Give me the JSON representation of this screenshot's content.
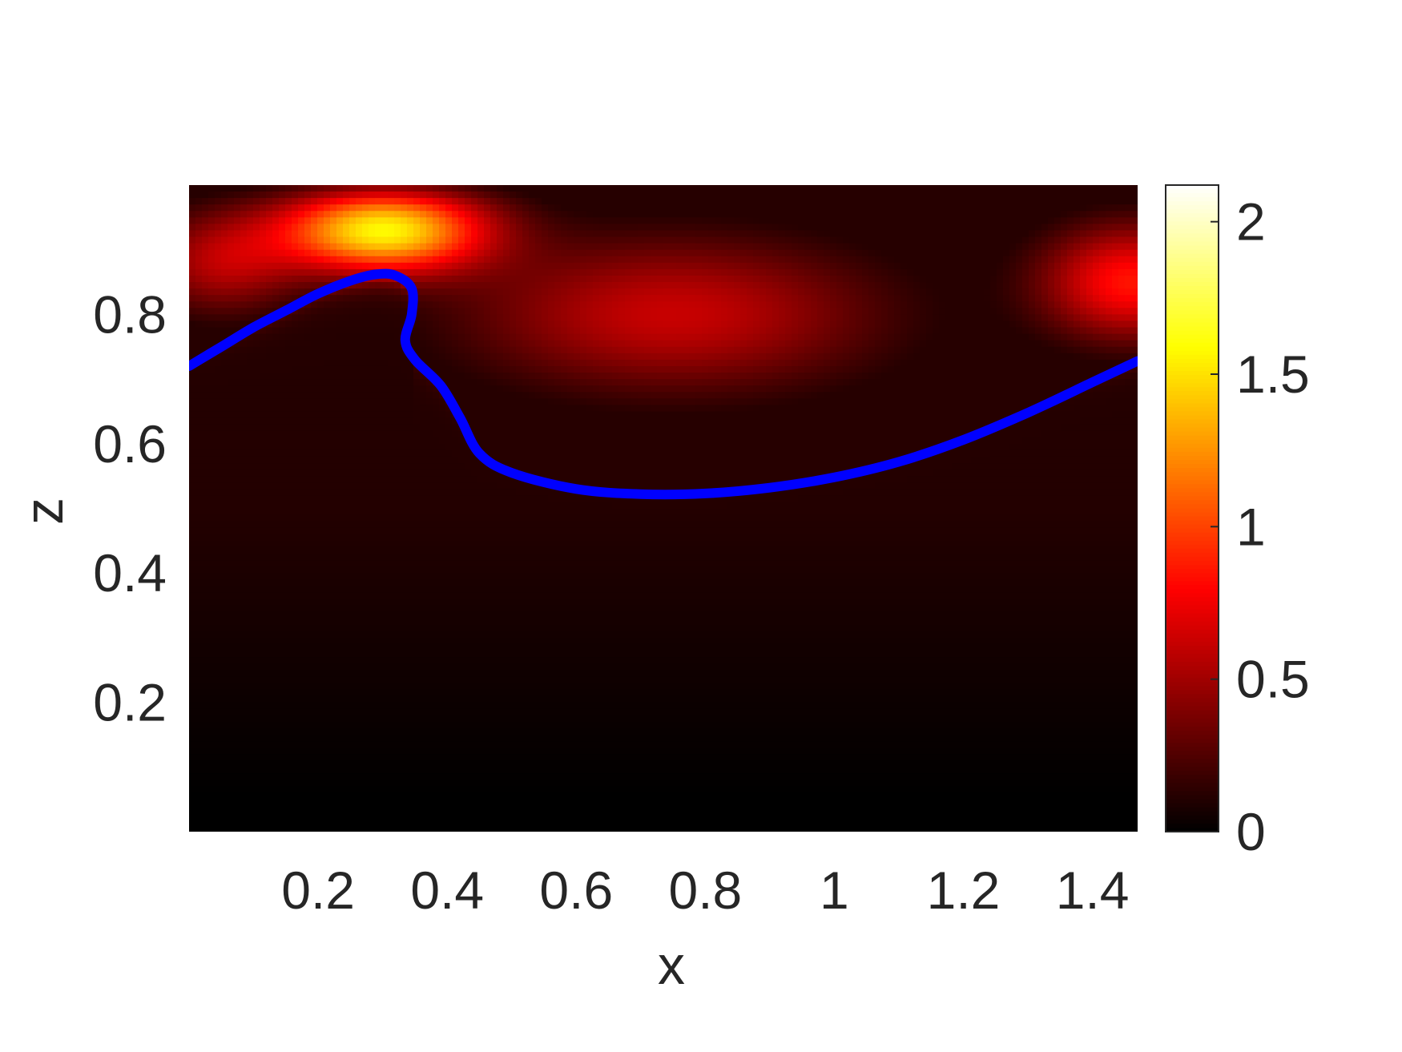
{
  "chart_data": {
    "type": "heatmap",
    "title": "",
    "xlabel": "x",
    "ylabel": "z",
    "xlim": [
      0.0,
      1.47
    ],
    "ylim": [
      0.0,
      1.0
    ],
    "x_ticks": [
      0.2,
      0.4,
      0.6,
      0.8,
      1.0,
      1.2,
      1.4
    ],
    "x_tick_labels": [
      "0.2",
      "0.4",
      "0.6",
      "0.8",
      "1",
      "1.2",
      "1.4"
    ],
    "y_ticks": [
      0.2,
      0.4,
      0.6,
      0.8
    ],
    "y_tick_labels": [
      "0.2",
      "0.4",
      "0.6",
      "0.8"
    ],
    "colormap": "hot",
    "colorbar": {
      "range": [
        0,
        2.12
      ],
      "ticks": [
        0,
        0.5,
        1,
        1.5,
        2
      ],
      "tick_labels": [
        "0",
        "0.5",
        "1",
        "1.5",
        "2"
      ]
    },
    "grid": false,
    "field_peaks": [
      {
        "x": 0.3,
        "z": 0.93,
        "value": 1.55
      },
      {
        "x": 1.46,
        "z": 0.85,
        "value": 0.85
      },
      {
        "x": 0.75,
        "z": 0.8,
        "value": 0.62
      }
    ],
    "interface_curve": {
      "color": "#0000ff",
      "points": [
        [
          0.0,
          0.72
        ],
        [
          0.05,
          0.75
        ],
        [
          0.1,
          0.78
        ],
        [
          0.15,
          0.806
        ],
        [
          0.2,
          0.832
        ],
        [
          0.25,
          0.852
        ],
        [
          0.29,
          0.862
        ],
        [
          0.32,
          0.86
        ],
        [
          0.345,
          0.84
        ],
        [
          0.345,
          0.8
        ],
        [
          0.335,
          0.76
        ],
        [
          0.35,
          0.73
        ],
        [
          0.39,
          0.69
        ],
        [
          0.42,
          0.64
        ],
        [
          0.45,
          0.585
        ],
        [
          0.5,
          0.555
        ],
        [
          0.6,
          0.53
        ],
        [
          0.7,
          0.522
        ],
        [
          0.8,
          0.523
        ],
        [
          0.9,
          0.532
        ],
        [
          1.0,
          0.548
        ],
        [
          1.1,
          0.572
        ],
        [
          1.2,
          0.606
        ],
        [
          1.3,
          0.648
        ],
        [
          1.4,
          0.695
        ],
        [
          1.47,
          0.728
        ]
      ]
    }
  }
}
